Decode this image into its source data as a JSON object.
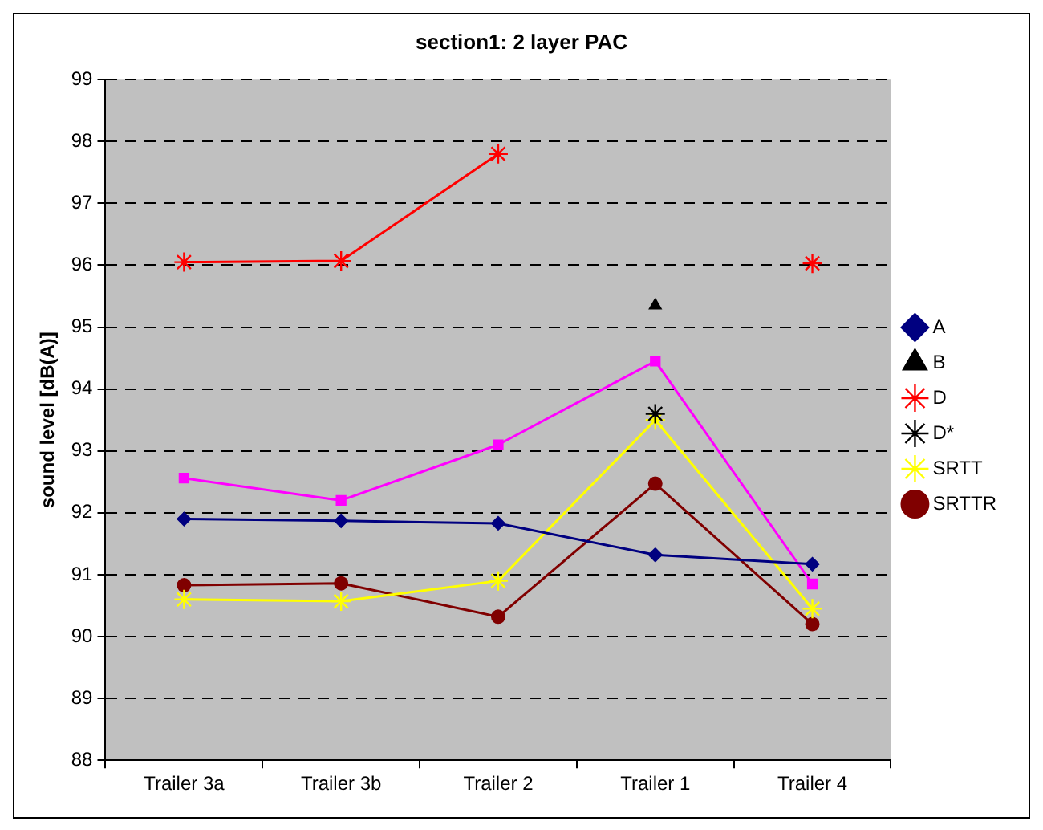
{
  "chart_data": {
    "type": "line",
    "title": "section1: 2 layer PAC",
    "ylabel": "sound level [dB(A)]",
    "categories": [
      "Trailer 3a",
      "Trailer 3b",
      "Trailer 2",
      "Trailer 1",
      "Trailer 4"
    ],
    "ylim": [
      88,
      99
    ],
    "yticks": [
      88,
      89,
      90,
      91,
      92,
      93,
      94,
      95,
      96,
      97,
      98,
      99
    ],
    "grid": "y",
    "legend": "right",
    "series": [
      {
        "name": "A",
        "color": "#000080",
        "marker": "diamond",
        "values": [
          91.9,
          91.87,
          91.83,
          91.32,
          91.17
        ]
      },
      {
        "color": "#ff00ff",
        "marker": "square",
        "values": [
          92.56,
          92.2,
          93.1,
          94.45,
          90.85
        ]
      },
      {
        "name": "B",
        "type": "scatter",
        "color": "#000000",
        "marker": "triangle",
        "values": [
          null,
          null,
          null,
          95.35,
          null
        ]
      },
      {
        "name": "D",
        "color": "#ff0000",
        "marker": "cross",
        "values": [
          96.05,
          96.07,
          97.8,
          null,
          96.03
        ]
      },
      {
        "name": "D*",
        "type": "scatter",
        "color": "#000000",
        "marker": "cross",
        "values": [
          null,
          null,
          null,
          93.6,
          null
        ]
      },
      {
        "name": "SRTT",
        "color": "#ffff00",
        "marker": "cross",
        "values": [
          90.6,
          90.57,
          90.9,
          93.5,
          90.45
        ]
      },
      {
        "name": "SRTTR",
        "color": "#800000",
        "marker": "circle",
        "values": [
          90.83,
          90.86,
          90.32,
          92.47,
          90.2
        ]
      }
    ]
  }
}
